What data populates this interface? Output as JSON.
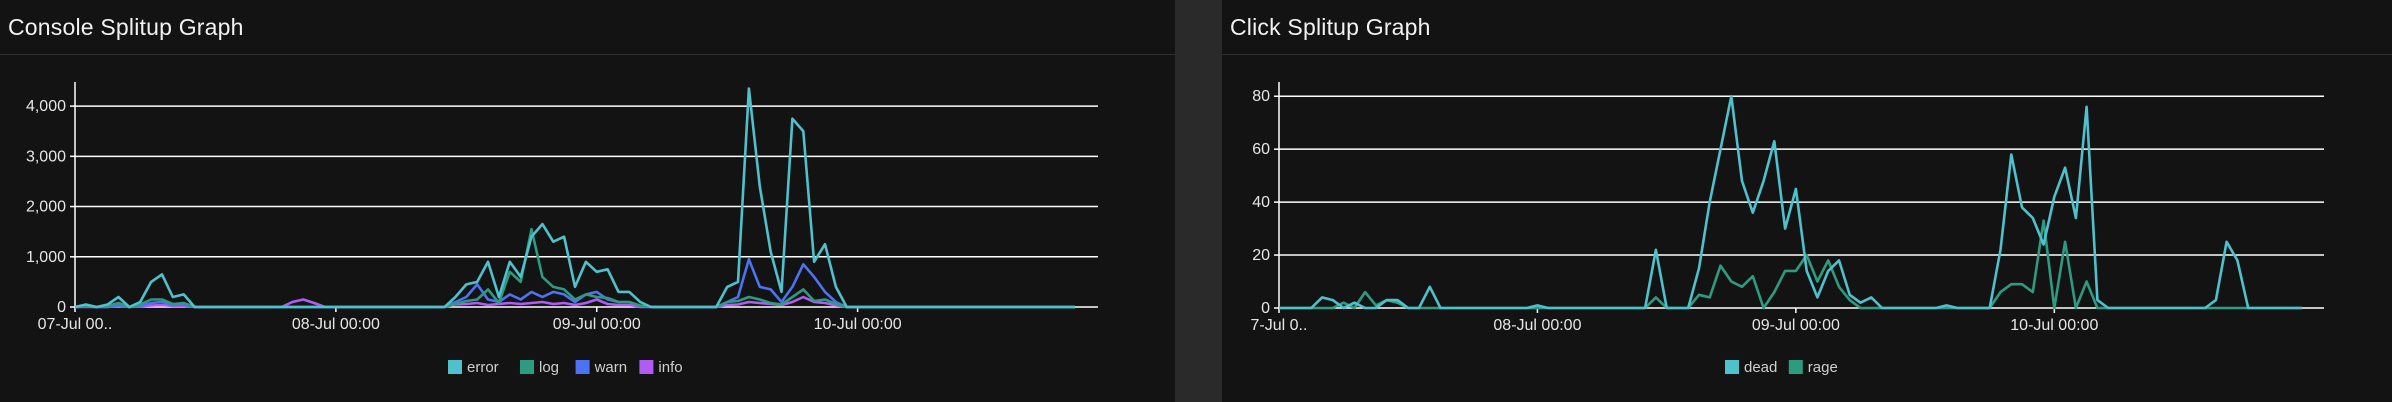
{
  "console": {
    "title": "Console Splitup Graph",
    "legend": [
      "error",
      "log",
      "warn",
      "info"
    ]
  },
  "click": {
    "title": "Click Splitup Graph",
    "legend": [
      "dead",
      "rage"
    ]
  },
  "colors": {
    "error": "#4fc1cc",
    "log": "#2e9a7f",
    "warn": "#4f72f2",
    "info": "#b05cf2",
    "dead": "#4fc1cc",
    "rage": "#2e9a7f",
    "grid": "#ffffff",
    "axis": "#ffffff"
  },
  "chart_data": [
    {
      "type": "line",
      "title": "Console Splitup Graph",
      "ylim": [
        0,
        4500
      ],
      "y_ticks": [
        "0",
        "1,000",
        "2,000",
        "3,000",
        "4,000"
      ],
      "y_tick_values": [
        0,
        1000,
        2000,
        3000,
        4000
      ],
      "x_tick_labels": [
        "07-Jul 00..",
        "08-Jul 00:00",
        "09-Jul 00:00",
        "10-Jul 00:00"
      ],
      "x_tick_index": [
        0,
        24,
        48,
        72
      ],
      "grid": true,
      "legend_position": "bottom-center",
      "series": [
        {
          "name": "error",
          "values": [
            0,
            50,
            0,
            50,
            200,
            0,
            100,
            500,
            650,
            200,
            250,
            0,
            0,
            0,
            0,
            0,
            0,
            0,
            0,
            0,
            0,
            0,
            0,
            0,
            0,
            0,
            0,
            0,
            0,
            0,
            0,
            0,
            0,
            0,
            0,
            200,
            450,
            500,
            900,
            200,
            900,
            600,
            1400,
            1650,
            1300,
            1400,
            400,
            900,
            700,
            750,
            300,
            300,
            100,
            0,
            0,
            0,
            0,
            0,
            0,
            0,
            400,
            500,
            4350,
            2400,
            1100,
            300,
            3750,
            3500,
            900,
            1250,
            400,
            0,
            0,
            0,
            0,
            0,
            0,
            0,
            0,
            0,
            0,
            0,
            0,
            0,
            0,
            0,
            0,
            0,
            0,
            0,
            0,
            0,
            0
          ]
        },
        {
          "name": "log",
          "values": [
            0,
            20,
            0,
            20,
            80,
            0,
            50,
            150,
            150,
            60,
            80,
            0,
            0,
            0,
            0,
            0,
            0,
            0,
            0,
            0,
            0,
            0,
            0,
            0,
            0,
            0,
            0,
            0,
            0,
            0,
            0,
            0,
            0,
            0,
            0,
            60,
            120,
            150,
            350,
            80,
            700,
            500,
            1550,
            600,
            400,
            350,
            150,
            250,
            200,
            180,
            100,
            100,
            30,
            0,
            0,
            0,
            0,
            0,
            0,
            0,
            100,
            120,
            200,
            150,
            80,
            50,
            200,
            350,
            120,
            150,
            60,
            0,
            0,
            0,
            0,
            0,
            0,
            0,
            0,
            0,
            0,
            0,
            0,
            0,
            0,
            0,
            0,
            0,
            0,
            0,
            0,
            0,
            0
          ]
        },
        {
          "name": "warn",
          "values": [
            0,
            10,
            0,
            0,
            30,
            0,
            20,
            80,
            100,
            40,
            50,
            0,
            0,
            0,
            0,
            0,
            0,
            0,
            0,
            0,
            0,
            0,
            0,
            0,
            0,
            0,
            0,
            0,
            0,
            0,
            0,
            0,
            0,
            0,
            0,
            100,
            200,
            450,
            150,
            100,
            250,
            150,
            300,
            200,
            300,
            250,
            100,
            250,
            300,
            150,
            100,
            100,
            20,
            0,
            0,
            0,
            0,
            0,
            0,
            0,
            100,
            200,
            950,
            400,
            350,
            100,
            400,
            850,
            600,
            300,
            100,
            0,
            0,
            0,
            0,
            0,
            0,
            0,
            0,
            0,
            0,
            0,
            0,
            0,
            0,
            0,
            0,
            0,
            0,
            0,
            0,
            0,
            0
          ]
        },
        {
          "name": "info",
          "values": [
            0,
            0,
            0,
            0,
            20,
            0,
            10,
            30,
            40,
            20,
            20,
            0,
            0,
            0,
            0,
            0,
            0,
            0,
            0,
            0,
            100,
            150,
            80,
            0,
            0,
            0,
            0,
            0,
            0,
            0,
            0,
            0,
            0,
            0,
            0,
            50,
            60,
            80,
            40,
            60,
            80,
            60,
            80,
            100,
            60,
            80,
            40,
            80,
            150,
            60,
            40,
            40,
            0,
            0,
            0,
            0,
            0,
            0,
            0,
            0,
            40,
            50,
            100,
            80,
            60,
            40,
            100,
            200,
            100,
            80,
            30,
            0,
            0,
            0,
            0,
            0,
            0,
            0,
            0,
            0,
            0,
            0,
            0,
            0,
            0,
            0,
            0,
            0,
            0,
            0,
            0,
            0,
            0
          ]
        }
      ]
    },
    {
      "type": "line",
      "title": "Click Splitup Graph",
      "ylim": [
        0,
        85
      ],
      "y_ticks": [
        "0",
        "20",
        "40",
        "60",
        "80"
      ],
      "y_tick_values": [
        0,
        20,
        40,
        60,
        80
      ],
      "x_tick_labels": [
        "7-Jul 0..",
        "08-Jul 00:00",
        "09-Jul 00:00",
        "10-Jul 00:00"
      ],
      "x_tick_index": [
        0,
        24,
        48,
        72
      ],
      "grid": true,
      "legend_position": "bottom-center",
      "series": [
        {
          "name": "dead",
          "values": [
            0,
            0,
            0,
            0,
            4,
            3,
            0,
            2,
            0,
            0,
            3,
            3,
            0,
            0,
            8,
            0,
            0,
            0,
            0,
            0,
            0,
            0,
            0,
            0,
            1,
            0,
            0,
            0,
            0,
            0,
            0,
            0,
            0,
            0,
            0,
            22,
            0,
            0,
            0,
            15,
            40,
            60,
            80,
            48,
            36,
            48,
            63,
            30,
            45,
            14,
            4,
            14,
            18,
            5,
            2,
            4,
            0,
            0,
            0,
            0,
            0,
            0,
            1,
            0,
            0,
            0,
            0,
            22,
            58,
            38,
            34,
            24,
            42,
            53,
            34,
            76,
            3,
            0,
            0,
            0,
            0,
            0,
            0,
            0,
            0,
            0,
            0,
            3,
            25,
            18,
            0,
            0,
            0,
            0,
            0,
            0
          ]
        },
        {
          "name": "rage",
          "values": [
            0,
            0,
            0,
            0,
            0,
            0,
            2,
            0,
            6,
            1,
            3,
            2,
            0,
            0,
            0,
            0,
            0,
            0,
            0,
            0,
            0,
            0,
            0,
            0,
            0,
            0,
            0,
            0,
            0,
            0,
            0,
            0,
            0,
            0,
            0,
            4,
            0,
            0,
            0,
            5,
            4,
            16,
            10,
            8,
            12,
            0,
            6,
            14,
            14,
            20,
            10,
            18,
            8,
            3,
            0,
            0,
            0,
            0,
            0,
            0,
            0,
            0,
            0,
            0,
            0,
            0,
            0,
            6,
            9,
            9,
            6,
            33,
            0,
            25,
            0,
            10,
            0,
            0,
            0,
            0,
            0,
            0,
            0,
            0,
            0,
            0,
            0,
            0,
            0,
            0,
            0,
            0,
            0,
            0,
            0,
            0
          ]
        }
      ]
    }
  ]
}
